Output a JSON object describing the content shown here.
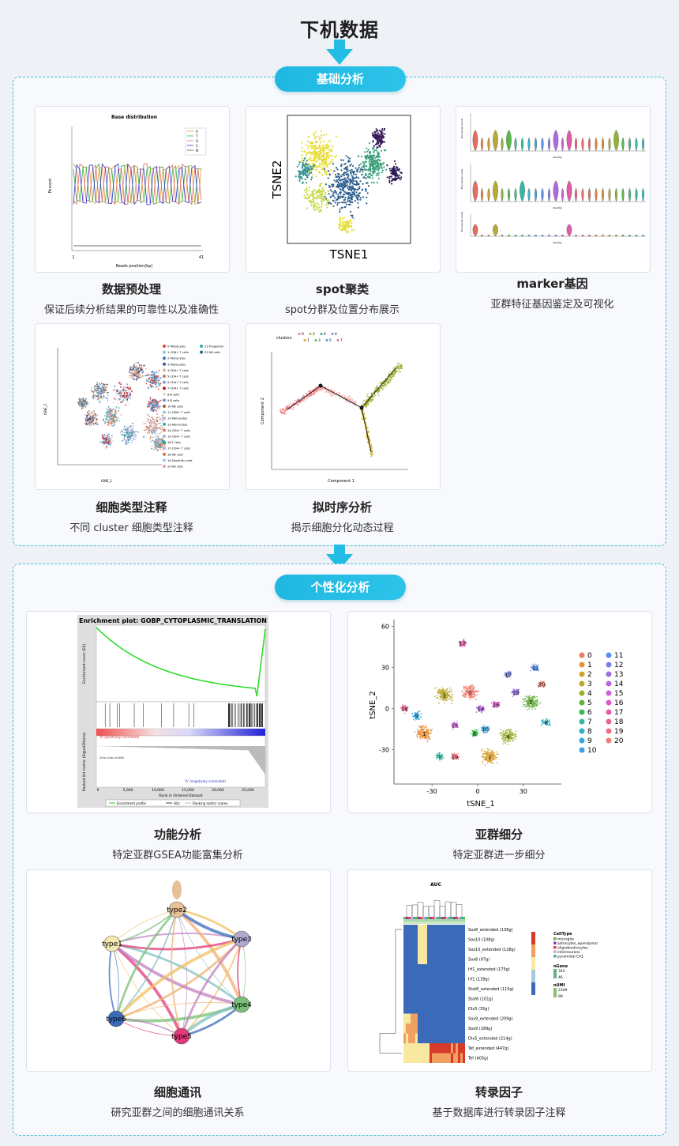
{
  "header": {
    "title": "下机数据"
  },
  "section1": {
    "label": "基础分析",
    "items": [
      {
        "title": "数据预处理",
        "subtitle": "保证后续分析结果的可靠性以及准确性",
        "figure": {
          "title": "Base distribution",
          "xlabel": "Reads position(bp)",
          "ylabel": "Percent",
          "x_start": "1",
          "x_end": "41",
          "legend": [
            "A",
            "T",
            "G",
            "C",
            "N"
          ]
        }
      },
      {
        "title": "spot聚类",
        "subtitle": "spot分群及位置分布展示",
        "figure": {
          "xlabel": "TSNE1",
          "ylabel": "TSNE2"
        }
      },
      {
        "title": "marker基因",
        "subtitle": "亚群特征基因鉴定及可视化",
        "figure": {
          "ylabel": "Expression Level",
          "xlabel": "Identity"
        }
      },
      {
        "title": "细胞类型注释",
        "subtitle": "不同 cluster 细胞类型注释",
        "figure": {
          "xlabel": "tSNE_1",
          "ylabel": "tSNE_2",
          "legend_col1": [
            "0-Monocytes",
            "1-CD8+ T cells",
            "2-Monocytes",
            "3-Monocytes",
            "4-CD4+ T cells",
            "5-CD4+ T cells",
            "6-CD4+ T cells",
            "7-CD4+ T cells",
            "8-B cells",
            "9-B cells",
            "10-NK cells",
            "11-CD8+ T cells",
            "12-Monocytes",
            "13-Monocytes",
            "14-CD4+ T cells",
            "15-CD4+ T cells",
            "16-T cells",
            "17-CD4+ T cells",
            "18-NK cells",
            "19-Dendritic cells",
            "20-NK cells"
          ],
          "legend_col2": [
            "21-Progenitor",
            "22-NK cells"
          ]
        }
      },
      {
        "title": "拟时序分析",
        "subtitle": "揭示细胞分化动态过程",
        "figure": {
          "legend_title": "clusters",
          "xlabel": "Component 1",
          "ylabel": "Component 2",
          "cluster_labels": [
            "0",
            "1",
            "2",
            "3",
            "4",
            "5",
            "6",
            "7"
          ]
        }
      }
    ]
  },
  "section2": {
    "label": "个性化分析",
    "items": [
      {
        "title": "功能分析",
        "subtitle": "特定亚群GSEA功能富集分析",
        "figure": {
          "title": "Enrichment plot: GOBP_CYTOPLASMIC_TRANSLATION",
          "ylabel_top": "Enrichment score (ES)",
          "ylabel_bottom": "Ranked list metric (Signal2Noise)",
          "xlabel": "Rank in Ordered Dataset",
          "pos_label": "'B' (positively correlated)",
          "neg_label": "'A' (negatively correlated)",
          "zero_label": "Zero cross at 866",
          "legend": [
            "Enrichment profile",
            "Hits",
            "Ranking metric scores"
          ],
          "x_ticks": [
            "0",
            "5,000",
            "10,000",
            "15,000",
            "20,000",
            "25,000"
          ]
        }
      },
      {
        "title": "亚群细分",
        "subtitle": "特定亚群进一步细分",
        "figure": {
          "xlabel": "tSNE_1",
          "ylabel": "tSNE_2",
          "x_ticks": [
            "-30",
            "0",
            "30"
          ],
          "y_ticks": [
            "60",
            "30",
            "0",
            "-30"
          ],
          "clusters": [
            "0",
            "1",
            "2",
            "3",
            "4",
            "5",
            "6",
            "7",
            "8",
            "9",
            "10",
            "11",
            "12",
            "13",
            "14",
            "15",
            "16",
            "17",
            "18",
            "19",
            "20"
          ]
        }
      },
      {
        "title": "细胞通讯",
        "subtitle": "研究亚群之间的细胞通讯关系",
        "figure": {
          "nodes": [
            "type1",
            "type2",
            "type3",
            "type4",
            "type5",
            "type6"
          ]
        }
      },
      {
        "title": "转录因子",
        "subtitle": "基于数据库进行转录因子注释",
        "figure": {
          "title": "AUC",
          "rows": [
            "Sox8_extended (136g)",
            "Sox10 (108g)",
            "Sox10_extended (128g)",
            "Sox8 (97g)",
            "Irf1_extended (175g)",
            "Irf1 (139g)",
            "Stat6_extended (115g)",
            "Stat6 (101g)",
            "Dlx5 (35g)",
            "Sox9_extended (209g)",
            "Sox9 (189g)",
            "Dlx5_extended (214g)",
            "Tef_extended (447g)",
            "Tef (405g)"
          ],
          "legend_celltype_title": "CellType",
          "legend_celltypes": [
            "microglia",
            "astrocytes_ependymal",
            "oligodendrocytes",
            "interneurons",
            "pyramidal CA1"
          ],
          "legend_ngene_title": "nGene",
          "ngene_values": [
            "342",
            "46"
          ],
          "legend_numi_title": "nUMI",
          "numi_values": [
            "2349",
            "99"
          ]
        }
      }
    ]
  },
  "colors": {
    "accent": "#22bce4",
    "border": "#3fb8d8"
  }
}
